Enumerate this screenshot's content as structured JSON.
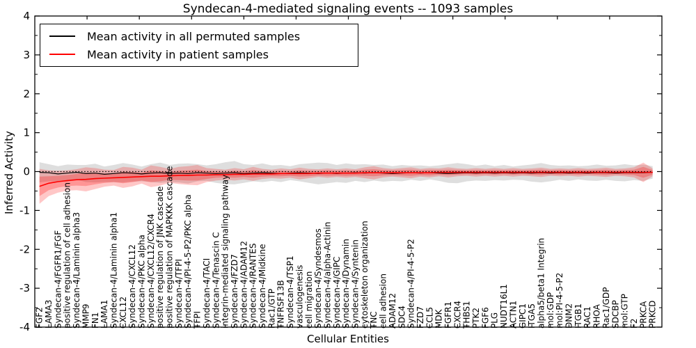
{
  "title": "Syndecan-4-mediated signaling events -- 1093 samples",
  "axes": {
    "xlabel": "Cellular Entities",
    "ylabel": "Inferred Activity"
  },
  "legend": {
    "entries": [
      {
        "label": "Mean activity in all permuted samples",
        "color": "#000000"
      },
      {
        "label": "Mean activity in patient samples",
        "color": "#ff0000"
      }
    ],
    "position": "upper left"
  },
  "chart_data": {
    "type": "line",
    "title": "Syndecan-4-mediated signaling events -- 1093 samples",
    "xlabel": "Cellular Entities",
    "ylabel": "Inferred Activity",
    "ylim": [
      -4,
      4
    ],
    "yticks": [
      -4,
      -3,
      -2,
      -1,
      0,
      1,
      2,
      3,
      4
    ],
    "ytick_labels": [
      "-4",
      "-3",
      "-2",
      "-1",
      "0",
      "1",
      "2",
      "3",
      "4"
    ],
    "grid": false,
    "zero_line": {
      "show": true,
      "style": "dotted",
      "color": "#000000",
      "y": 0
    },
    "legend_position": "upper left",
    "categories": [
      "FGF2",
      "LAMA3",
      "Syndecan-4/FGFR1/FGF",
      "positive regulation of cell adhesion",
      "Syndecan-4/Laminin alpha3",
      "MMP9",
      "FN1",
      "LAMA1",
      "Syndecan-4/Laminin alpha1",
      "CXCL12",
      "Syndecan-4/CXCL12",
      "Syndecan-4/PKC alpha",
      "Syndecan-4/CXCL12/CXCR4",
      "positive regulation of JNK cascade",
      "positive regulation of MAPKKK cascade",
      "Syndecan-4/TFPI",
      "Syndecan-4/PI-4-5-P2/PKC alpha",
      "TFPI",
      "Syndecan-4/TACI",
      "Syndecan-4/Tenascin C",
      "integrin-mediated signaling pathway",
      "Syndecan-4/FZD7",
      "Syndecan-4/ADAM12",
      "Syndecan-4/RANTES",
      "Syndecan-4/Midkine",
      "Rac1/GTP",
      "TNFRSF13B",
      "Syndecan-4/TSP1",
      "vasculogenesis",
      "cell migration",
      "Syndecan-4/Syndesmos",
      "Syndecan-4/alpha-Actinin",
      "Syndecan-4/GIPC",
      "Syndecan-4/Dynamin",
      "Syndecan-4/Syntenin",
      "cytoskeleton organization",
      "TNC",
      "cell adhesion",
      "ADAM12",
      "SDC4",
      "Syndecan-4/PI-4-5-P2",
      "FZD7",
      "CCL5",
      "MDK",
      "FGFR1",
      "CXCR4",
      "THBS1",
      "PTK2",
      "FGF6",
      "PLG",
      "NUDT16L1",
      "ACTN1",
      "GIPC1",
      "ITGA5",
      "alpha5/beta1 Integrin",
      "mol:GDP",
      "mol:PI-4-5-P2",
      "DNM2",
      "ITGB1",
      "RAC1",
      "RHOA",
      "Rac1/GDP",
      "SDCBP",
      "mol:GTP",
      "F2",
      "PRKCA",
      "PRKCD"
    ],
    "series": [
      {
        "name": "Mean activity in all permuted samples",
        "color": "#000000",
        "values": [
          -0.02,
          -0.03,
          -0.06,
          -0.04,
          -0.02,
          -0.05,
          -0.04,
          -0.07,
          -0.05,
          -0.03,
          -0.04,
          -0.06,
          -0.04,
          -0.03,
          -0.05,
          -0.04,
          -0.05,
          -0.03,
          -0.04,
          -0.05,
          -0.04,
          -0.03,
          -0.05,
          -0.04,
          -0.03,
          -0.04,
          -0.05,
          -0.04,
          -0.03,
          -0.04,
          -0.05,
          -0.04,
          -0.05,
          -0.04,
          -0.03,
          -0.04,
          -0.03,
          -0.04,
          -0.05,
          -0.04,
          -0.03,
          -0.04,
          -0.03,
          -0.04,
          -0.05,
          -0.04,
          -0.03,
          -0.04,
          -0.03,
          -0.04,
          -0.03,
          -0.04,
          -0.03,
          -0.04,
          -0.03,
          -0.04,
          -0.03,
          -0.04,
          -0.03,
          -0.04,
          -0.03,
          -0.03,
          -0.04,
          -0.03,
          -0.03,
          -0.03,
          -0.02
        ]
      },
      {
        "name": "Mean activity in patient samples",
        "color": "#ff0000",
        "values": [
          -0.38,
          -0.3,
          -0.26,
          -0.23,
          -0.21,
          -0.2,
          -0.18,
          -0.17,
          -0.16,
          -0.15,
          -0.14,
          -0.13,
          -0.12,
          -0.12,
          -0.11,
          -0.1,
          -0.1,
          -0.09,
          -0.09,
          -0.08,
          -0.08,
          -0.07,
          -0.07,
          -0.06,
          -0.06,
          -0.06,
          -0.05,
          -0.05,
          -0.05,
          -0.05,
          -0.04,
          -0.04,
          -0.04,
          -0.04,
          -0.04,
          -0.03,
          -0.03,
          -0.03,
          -0.03,
          -0.03,
          -0.03,
          -0.03,
          -0.03,
          -0.02,
          -0.02,
          -0.02,
          -0.02,
          -0.02,
          -0.02,
          -0.02,
          -0.02,
          -0.02,
          -0.02,
          -0.02,
          -0.02,
          -0.02,
          -0.02,
          -0.02,
          -0.02,
          -0.02,
          -0.02,
          -0.02,
          -0.02,
          -0.02,
          -0.02,
          -0.02,
          -0.02
        ]
      }
    ],
    "bands": [
      {
        "name": "permuted-range",
        "around_series": 0,
        "color": "#000000",
        "opacity": 0.13,
        "halfwidths": [
          0.26,
          0.22,
          0.2,
          0.22,
          0.19,
          0.22,
          0.24,
          0.2,
          0.22,
          0.25,
          0.22,
          0.19,
          0.23,
          0.26,
          0.22,
          0.24,
          0.26,
          0.22,
          0.2,
          0.24,
          0.28,
          0.3,
          0.24,
          0.21,
          0.24,
          0.2,
          0.22,
          0.18,
          0.22,
          0.25,
          0.28,
          0.26,
          0.22,
          0.25,
          0.21,
          0.23,
          0.2,
          0.22,
          0.19,
          0.21,
          0.18,
          0.2,
          0.17,
          0.2,
          0.24,
          0.26,
          0.22,
          0.19,
          0.21,
          0.18,
          0.2,
          0.17,
          0.19,
          0.22,
          0.25,
          0.21,
          0.18,
          0.2,
          0.17,
          0.19,
          0.21,
          0.18,
          0.2,
          0.22,
          0.19,
          0.21,
          0.16
        ]
      },
      {
        "name": "patient-range-outer",
        "around_series": 1,
        "color": "#ff0000",
        "opacity": 0.22,
        "halfwidths": [
          0.45,
          0.33,
          0.28,
          0.26,
          0.27,
          0.31,
          0.27,
          0.22,
          0.2,
          0.27,
          0.24,
          0.18,
          0.28,
          0.24,
          0.18,
          0.22,
          0.24,
          0.26,
          0.18,
          0.15,
          0.13,
          0.16,
          0.13,
          0.18,
          0.13,
          0.11,
          0.13,
          0.11,
          0.15,
          0.12,
          0.1,
          0.12,
          0.1,
          0.12,
          0.1,
          0.14,
          0.17,
          0.12,
          0.1,
          0.12,
          0.14,
          0.1,
          0.12,
          0.1,
          0.13,
          0.1,
          0.09,
          0.11,
          0.09,
          0.11,
          0.09,
          0.11,
          0.09,
          0.1,
          0.12,
          0.09,
          0.1,
          0.09,
          0.11,
          0.09,
          0.1,
          0.12,
          0.09,
          0.1,
          0.13,
          0.25,
          0.1
        ]
      },
      {
        "name": "patient-range-inner",
        "around_series": 1,
        "color": "#ff0000",
        "opacity": 0.25,
        "halfwidths": [
          0.25,
          0.18,
          0.15,
          0.14,
          0.15,
          0.17,
          0.15,
          0.12,
          0.11,
          0.15,
          0.13,
          0.1,
          0.15,
          0.13,
          0.1,
          0.12,
          0.13,
          0.14,
          0.1,
          0.08,
          0.07,
          0.09,
          0.07,
          0.1,
          0.07,
          0.06,
          0.07,
          0.06,
          0.08,
          0.07,
          0.06,
          0.07,
          0.06,
          0.07,
          0.06,
          0.08,
          0.09,
          0.07,
          0.06,
          0.07,
          0.08,
          0.06,
          0.07,
          0.06,
          0.07,
          0.06,
          0.05,
          0.06,
          0.05,
          0.06,
          0.05,
          0.06,
          0.05,
          0.06,
          0.07,
          0.05,
          0.06,
          0.05,
          0.06,
          0.05,
          0.06,
          0.07,
          0.05,
          0.06,
          0.07,
          0.14,
          0.06
        ]
      }
    ]
  }
}
